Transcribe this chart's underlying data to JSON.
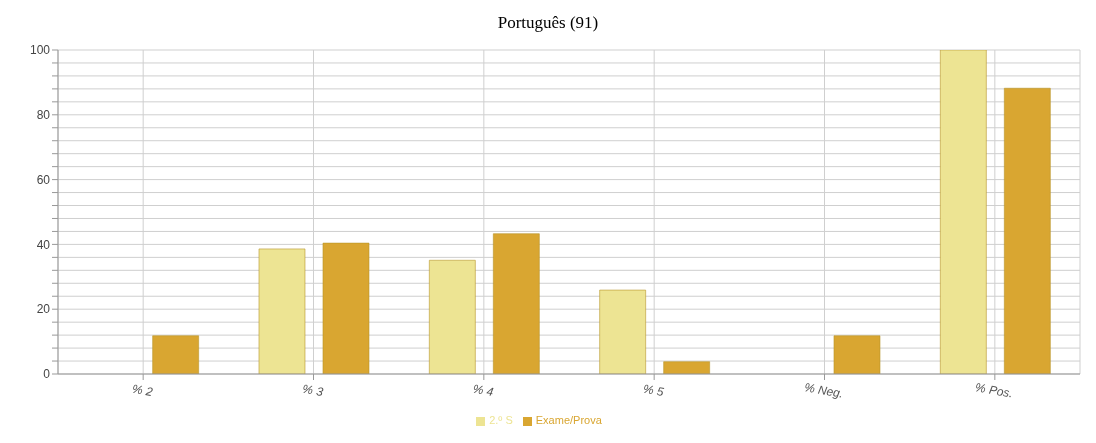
{
  "chart_data": {
    "type": "bar",
    "title": "Português (91)",
    "categories": [
      "% 2",
      "% 3",
      "% 4",
      "% 5",
      "% Neg.",
      "% Pos."
    ],
    "series": [
      {
        "name": "2.º S",
        "color": "#ede493",
        "values": [
          0,
          38.6,
          35.1,
          25.9,
          0,
          100
        ]
      },
      {
        "name": "Exame/Prova",
        "color": "#d9a631",
        "values": [
          11.8,
          40.4,
          43.3,
          3.8,
          11.8,
          88.2
        ]
      }
    ],
    "ylim": [
      0,
      100
    ],
    "yticks": [
      0,
      {
        "value": 4,
        "label": null
      },
      {
        "value": 8,
        "label": null
      },
      {
        "value": 12,
        "label": null
      },
      {
        "value": 16,
        "label": null
      },
      20,
      {
        "value": 24,
        "label": null
      },
      {
        "value": 28,
        "label": null
      },
      {
        "value": 32,
        "label": null
      },
      {
        "value": 36,
        "label": null
      },
      40,
      {
        "value": 44,
        "label": null
      },
      {
        "value": 48,
        "label": null
      },
      {
        "value": 52,
        "label": null
      },
      {
        "value": 56,
        "label": null
      },
      60,
      {
        "value": 64,
        "label": null
      },
      {
        "value": 68,
        "label": null
      },
      {
        "value": 72,
        "label": null
      },
      {
        "value": 76,
        "label": null
      },
      80,
      {
        "value": 84,
        "label": null
      },
      {
        "value": 88,
        "label": null
      },
      {
        "value": 92,
        "label": null
      },
      {
        "value": 96,
        "label": null
      },
      100
    ],
    "grid": true,
    "legend": "bottom"
  }
}
